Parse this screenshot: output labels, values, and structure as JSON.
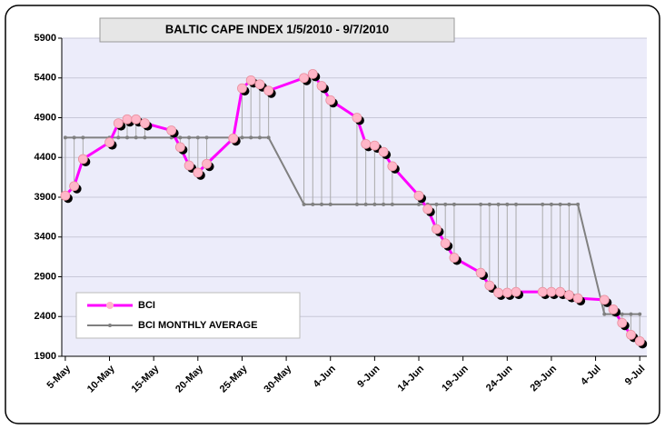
{
  "chart_data": {
    "type": "line",
    "title": "BALTIC CAPE INDEX  1/5/2010 - 9/7/2010",
    "x": [
      0,
      1,
      2,
      5,
      6,
      7,
      8,
      9,
      12,
      13,
      14,
      15,
      16,
      19,
      20,
      21,
      22,
      23,
      27,
      28,
      29,
      30,
      33,
      34,
      35,
      36,
      37,
      40,
      41,
      42,
      43,
      44,
      47,
      48,
      49,
      50,
      51,
      54,
      55,
      56,
      57,
      58,
      61,
      62,
      63,
      64,
      65
    ],
    "series": [
      {
        "name": "BCI",
        "color": "#ff00ff",
        "marker_color": "#ffb6c8",
        "values": [
          3920,
          4040,
          4380,
          4590,
          4830,
          4880,
          4880,
          4830,
          4740,
          4530,
          4300,
          4210,
          4320,
          4640,
          5270,
          5370,
          5320,
          5240,
          5400,
          5450,
          5300,
          5120,
          4900,
          4570,
          4550,
          4470,
          4290,
          3920,
          3750,
          3500,
          3320,
          3140,
          2950,
          2790,
          2700,
          2700,
          2710,
          2710,
          2710,
          2710,
          2670,
          2630,
          2610,
          2490,
          2320,
          2170,
          2090
        ]
      },
      {
        "name": "BCI MONTHLY AVERAGE",
        "color": "#808080",
        "values": [
          4650,
          4650,
          4650,
          4650,
          4650,
          4650,
          4650,
          4650,
          4650,
          4650,
          4650,
          4650,
          4650,
          4650,
          4650,
          4650,
          4650,
          4650,
          3810,
          3810,
          3810,
          3810,
          3810,
          3810,
          3810,
          3810,
          3810,
          3810,
          3810,
          3810,
          3810,
          3810,
          3810,
          3810,
          3810,
          3810,
          3810,
          3810,
          3810,
          3810,
          3810,
          3810,
          2430,
          2430,
          2430,
          2430,
          2430
        ]
      }
    ],
    "xlim": [
      -0.4,
      65.8
    ],
    "xticks": [
      {
        "value": 0,
        "label": "5-May"
      },
      {
        "value": 5,
        "label": "10-May"
      },
      {
        "value": 10,
        "label": "15-May"
      },
      {
        "value": 15,
        "label": "20-May"
      },
      {
        "value": 20,
        "label": "25-May"
      },
      {
        "value": 25,
        "label": "30-May"
      },
      {
        "value": 30,
        "label": "4-Jun"
      },
      {
        "value": 35,
        "label": "9-Jun"
      },
      {
        "value": 40,
        "label": "14-Jun"
      },
      {
        "value": 45,
        "label": "19-Jun"
      },
      {
        "value": 50,
        "label": "24-Jun"
      },
      {
        "value": 55,
        "label": "29-Jun"
      },
      {
        "value": 60,
        "label": "4-Jul"
      },
      {
        "value": 65,
        "label": "9-Jul"
      }
    ],
    "ylim": [
      1900,
      5900
    ],
    "yticks": [
      1900,
      2400,
      2900,
      3400,
      3900,
      4400,
      4900,
      5400,
      5900
    ],
    "grid": true,
    "drop_lines": true,
    "legend": "lower left"
  }
}
